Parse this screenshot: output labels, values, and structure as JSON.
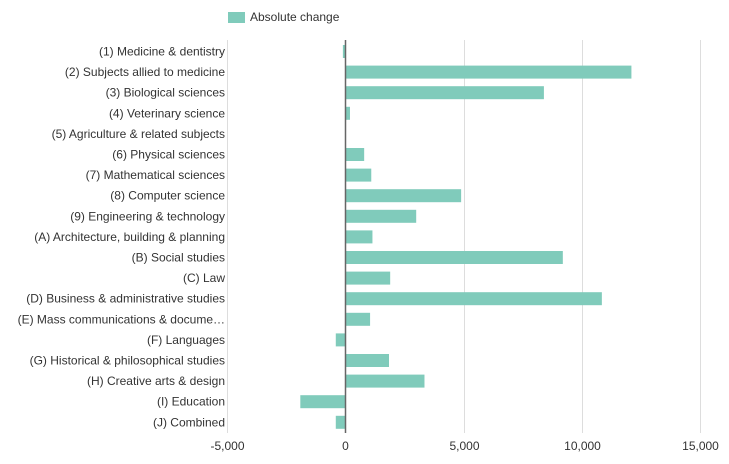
{
  "chart_data": {
    "type": "bar",
    "orientation": "horizontal",
    "categories": [
      "(1) Medicine & dentistry",
      "(2) Subjects allied to medicine",
      "(3) Biological sciences",
      "(4) Veterinary science",
      "(5) Agriculture & related subjects",
      "(6) Physical sciences",
      "(7) Mathematical sciences",
      "(8) Computer science",
      "(9) Engineering & technology",
      "(A) Architecture, building & planning",
      "(B) Social studies",
      "(C) Law",
      "(D) Business & administrative studies",
      "(E) Mass communications & docume…",
      "(F) Languages",
      "(G) Historical & philosophical studies",
      "(H) Creative arts & design",
      "(I) Education",
      "(J) Combined"
    ],
    "series": [
      {
        "name": "Absolute change",
        "color": "#80cbbb",
        "values": [
          -100,
          12100,
          8400,
          200,
          0,
          800,
          1100,
          4900,
          3000,
          1150,
          9200,
          1900,
          10850,
          1050,
          -400,
          1850,
          3350,
          -1900,
          -400
        ]
      }
    ],
    "xlim": [
      -5000,
      15000
    ],
    "xticks": [
      -5000,
      0,
      5000,
      10000,
      15000
    ],
    "xtick_labels": [
      "-5,000",
      "0",
      "5,000",
      "10,000",
      "15,000"
    ],
    "grid": true,
    "legend_placement": "top-left",
    "title": "",
    "xlabel": "",
    "ylabel": ""
  }
}
